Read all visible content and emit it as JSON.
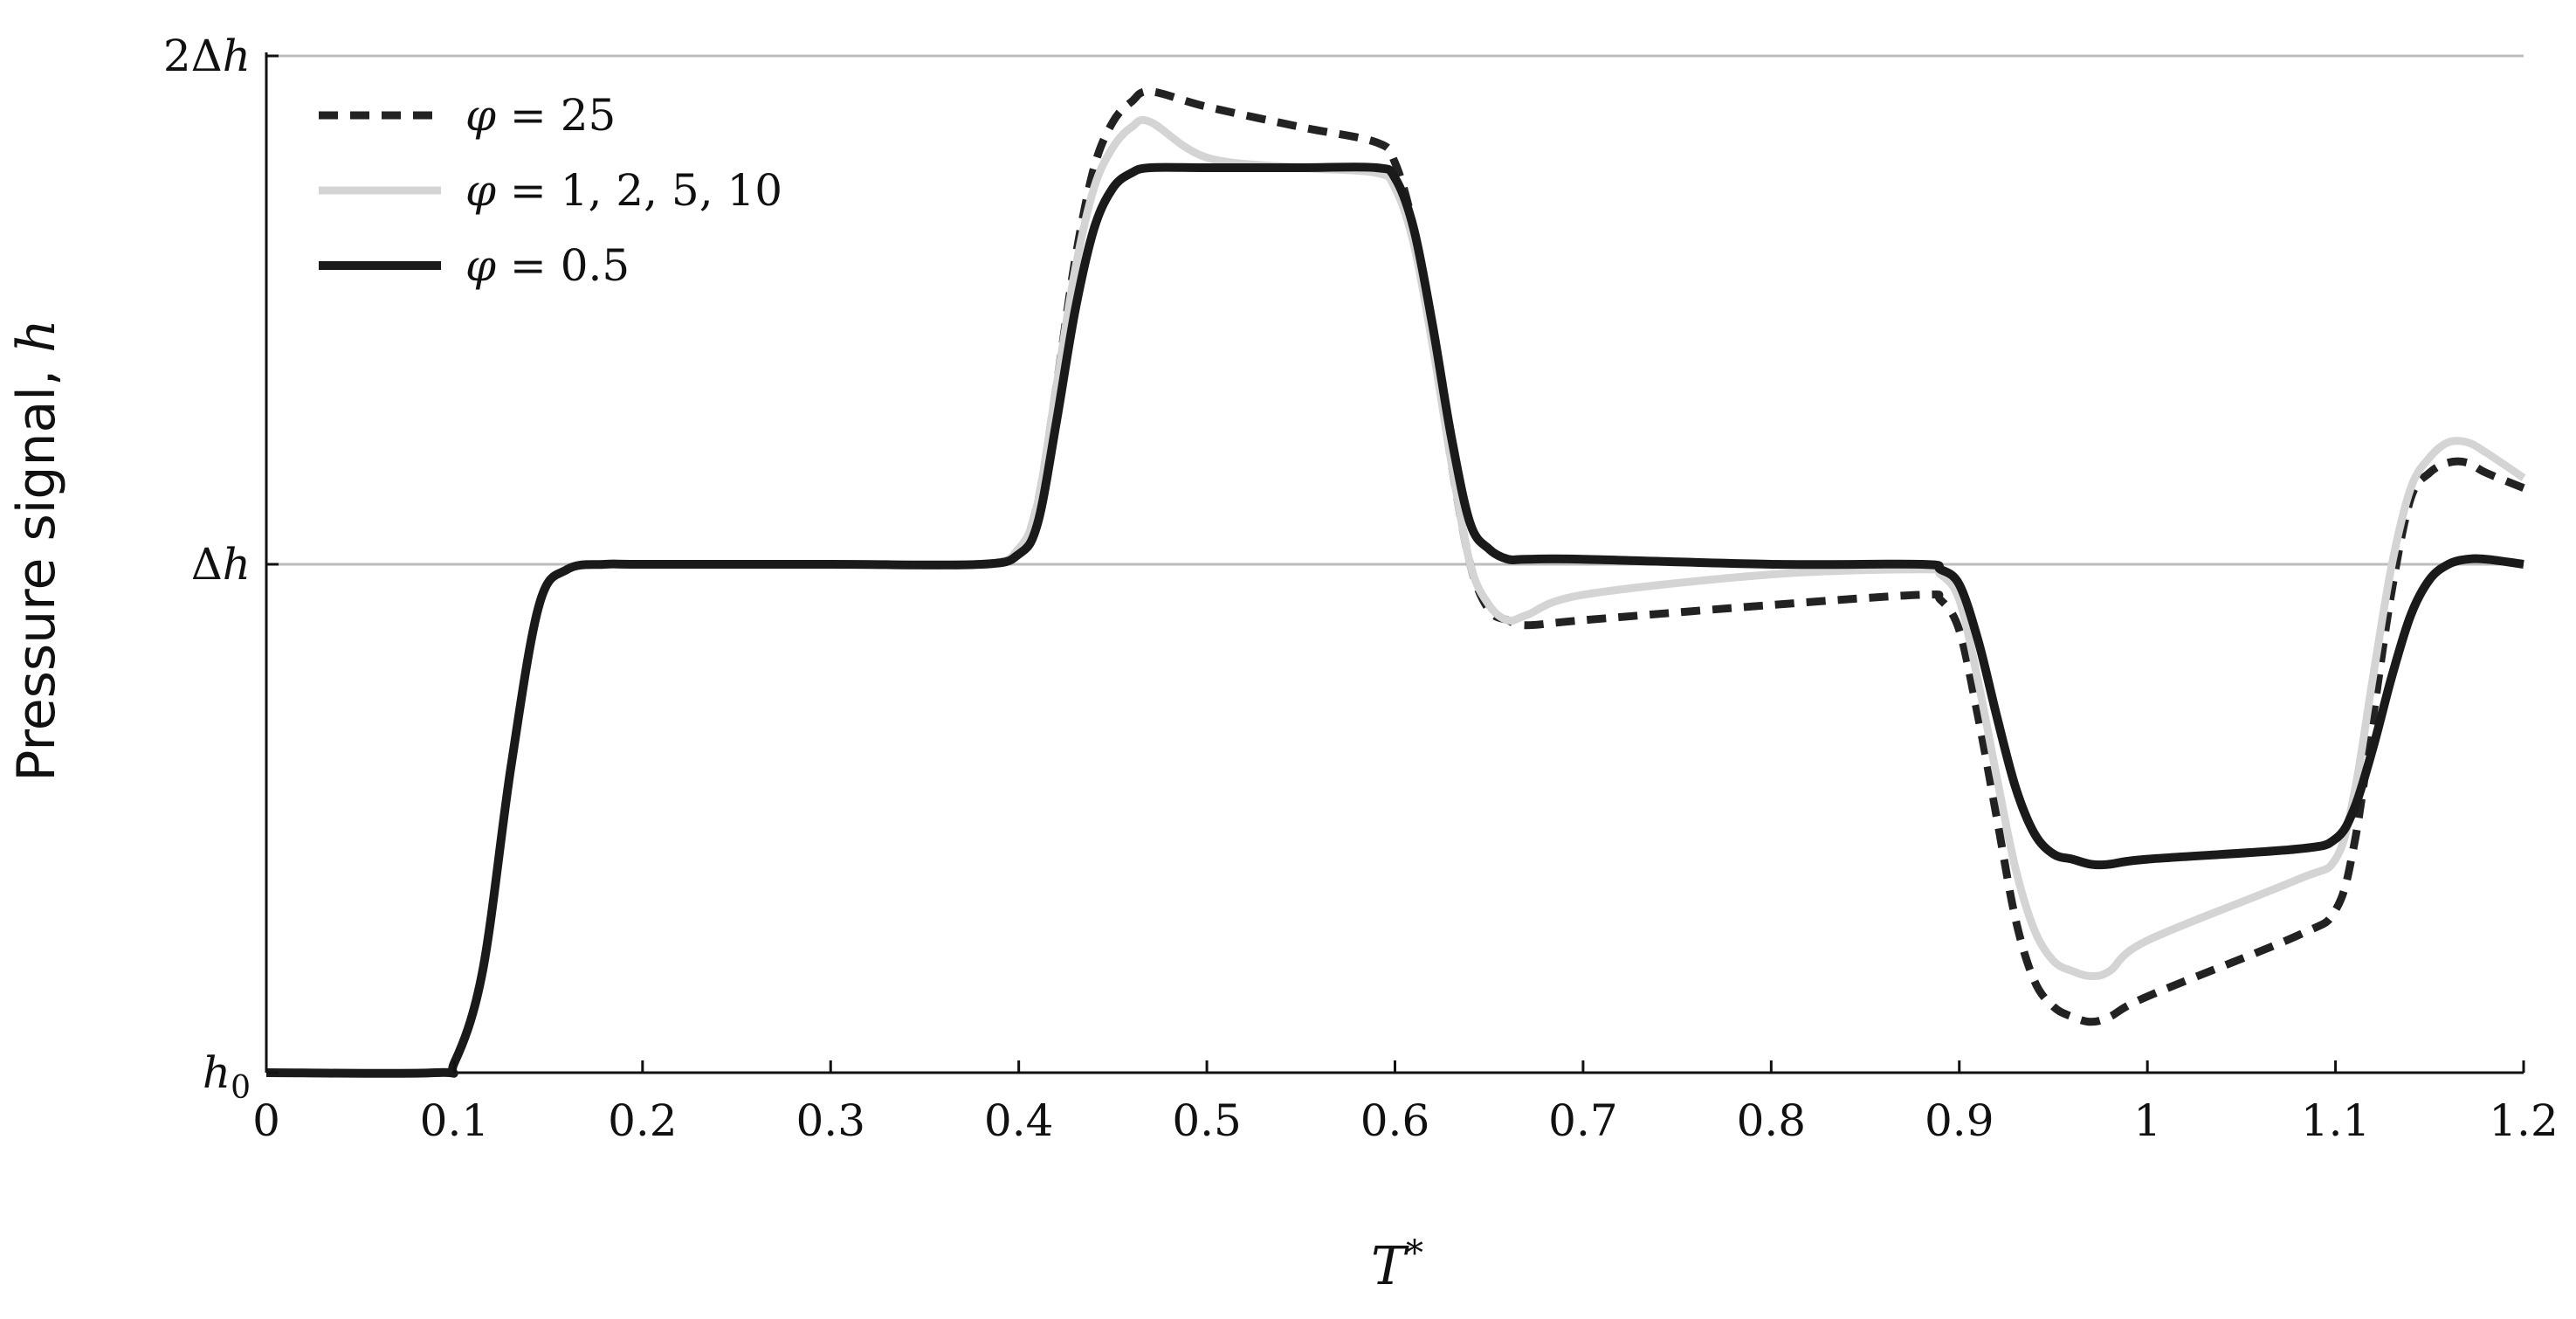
{
  "chart_data": {
    "type": "line",
    "xlabel": "T*",
    "ylabel": "Pressure signal, h",
    "xlim": [
      0,
      1.2
    ],
    "ylim": [
      0,
      2
    ],
    "x_ticks": [
      "0",
      "0.1",
      "0.2",
      "0.3",
      "0.4",
      "0.5",
      "0.6",
      "0.7",
      "0.8",
      "0.9",
      "1",
      "1.1",
      "1.2"
    ],
    "x_tick_values": [
      0,
      0.1,
      0.2,
      0.3,
      0.4,
      0.5,
      0.6,
      0.7,
      0.8,
      0.9,
      1.0,
      1.1,
      1.2
    ],
    "y_ticks": [
      {
        "value": 0,
        "label": "h0"
      },
      {
        "value": 1,
        "label": "Δh"
      },
      {
        "value": 2,
        "label": "2Δh"
      }
    ],
    "grid": "horizontal at y ticks",
    "legend_position": "top-left",
    "series": [
      {
        "name": "φ = 25",
        "style": "dashed",
        "color": "#222222",
        "x": [
          0,
          0.09,
          0.1,
          0.115,
          0.13,
          0.145,
          0.16,
          0.18,
          0.2,
          0.3,
          0.38,
          0.4,
          0.41,
          0.42,
          0.43,
          0.44,
          0.45,
          0.46,
          0.47,
          0.5,
          0.55,
          0.59,
          0.6,
          0.61,
          0.62,
          0.63,
          0.64,
          0.65,
          0.66,
          0.67,
          0.7,
          0.8,
          0.88,
          0.89,
          0.9,
          0.91,
          0.92,
          0.93,
          0.94,
          0.95,
          0.96,
          0.97,
          0.98,
          1.0,
          1.08,
          1.1,
          1.11,
          1.12,
          1.13,
          1.14,
          1.15,
          1.16,
          1.17,
          1.18,
          1.2
        ],
        "y": [
          0,
          0,
          0.02,
          0.2,
          0.6,
          0.92,
          0.99,
          1.0,
          1.0,
          1.0,
          1.0,
          1.03,
          1.12,
          1.35,
          1.6,
          1.78,
          1.87,
          1.91,
          1.93,
          1.9,
          1.86,
          1.83,
          1.79,
          1.66,
          1.45,
          1.2,
          1.0,
          0.91,
          0.89,
          0.88,
          0.89,
          0.92,
          0.94,
          0.93,
          0.87,
          0.7,
          0.5,
          0.3,
          0.18,
          0.13,
          0.11,
          0.1,
          0.11,
          0.15,
          0.27,
          0.32,
          0.45,
          0.7,
          0.95,
          1.13,
          1.18,
          1.2,
          1.2,
          1.18,
          1.15
        ]
      },
      {
        "name": "φ = 1, 2, 5, 10",
        "style": "solid",
        "color": "#d4d4d4",
        "x": [
          0,
          0.09,
          0.1,
          0.115,
          0.13,
          0.145,
          0.16,
          0.18,
          0.2,
          0.3,
          0.38,
          0.4,
          0.41,
          0.42,
          0.43,
          0.44,
          0.45,
          0.46,
          0.47,
          0.5,
          0.55,
          0.59,
          0.6,
          0.61,
          0.62,
          0.63,
          0.64,
          0.65,
          0.66,
          0.67,
          0.7,
          0.8,
          0.88,
          0.89,
          0.9,
          0.91,
          0.92,
          0.93,
          0.94,
          0.95,
          0.96,
          0.97,
          0.98,
          1.0,
          1.08,
          1.1,
          1.11,
          1.12,
          1.13,
          1.14,
          1.15,
          1.16,
          1.17,
          1.18,
          1.2
        ],
        "y": [
          0,
          0,
          0.02,
          0.2,
          0.6,
          0.92,
          0.99,
          1.0,
          1.0,
          1.0,
          1.0,
          1.03,
          1.12,
          1.35,
          1.58,
          1.74,
          1.82,
          1.86,
          1.87,
          1.8,
          1.78,
          1.77,
          1.74,
          1.63,
          1.43,
          1.2,
          1.0,
          0.92,
          0.89,
          0.9,
          0.94,
          0.98,
          0.99,
          0.98,
          0.93,
          0.77,
          0.58,
          0.4,
          0.28,
          0.22,
          0.2,
          0.19,
          0.2,
          0.26,
          0.38,
          0.42,
          0.55,
          0.78,
          1.0,
          1.15,
          1.21,
          1.24,
          1.24,
          1.22,
          1.17
        ]
      },
      {
        "name": "φ = 0.5",
        "style": "solid",
        "color": "#1a1a1a",
        "x": [
          0,
          0.09,
          0.1,
          0.115,
          0.13,
          0.145,
          0.16,
          0.18,
          0.2,
          0.3,
          0.38,
          0.4,
          0.41,
          0.42,
          0.43,
          0.44,
          0.45,
          0.46,
          0.47,
          0.5,
          0.55,
          0.59,
          0.6,
          0.61,
          0.62,
          0.63,
          0.64,
          0.65,
          0.66,
          0.67,
          0.7,
          0.8,
          0.88,
          0.89,
          0.9,
          0.91,
          0.92,
          0.93,
          0.94,
          0.95,
          0.96,
          0.97,
          0.98,
          1.0,
          1.08,
          1.1,
          1.11,
          1.12,
          1.13,
          1.14,
          1.15,
          1.16,
          1.17,
          1.18,
          1.2
        ],
        "y": [
          0,
          0,
          0.02,
          0.2,
          0.6,
          0.92,
          0.99,
          1.0,
          1.0,
          1.0,
          1.0,
          1.02,
          1.08,
          1.28,
          1.5,
          1.66,
          1.74,
          1.77,
          1.78,
          1.78,
          1.78,
          1.78,
          1.76,
          1.66,
          1.47,
          1.25,
          1.08,
          1.03,
          1.01,
          1.01,
          1.01,
          1.0,
          1.0,
          0.99,
          0.96,
          0.85,
          0.7,
          0.56,
          0.47,
          0.43,
          0.42,
          0.41,
          0.41,
          0.42,
          0.44,
          0.46,
          0.52,
          0.64,
          0.78,
          0.9,
          0.97,
          1.0,
          1.01,
          1.01,
          1.0
        ]
      }
    ]
  }
}
